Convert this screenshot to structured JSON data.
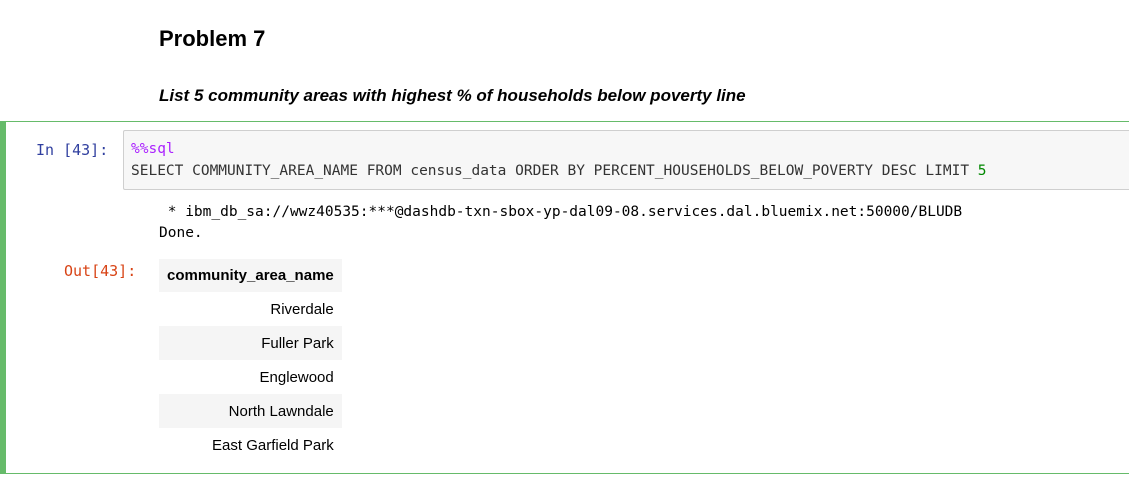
{
  "markdown": {
    "heading": "Problem 7",
    "subheading": "List 5 community areas with highest % of households below poverty line"
  },
  "cell": {
    "in_prompt": "In [43]:",
    "code_magic": "%%sql",
    "code_query": "SELECT COMMUNITY_AREA_NAME FROM census_data ORDER BY PERCENT_HOUSEHOLDS_BELOW_POVERTY DESC LIMIT ",
    "code_limit": "5",
    "stdout_line1": " * ibm_db_sa://wwz40535:***@dashdb-txn-sbox-yp-dal09-08.services.dal.bluemix.net:50000/BLUDB",
    "stdout_line2": "Done.",
    "out_prompt": "Out[43]:",
    "table": {
      "header": "community_area_name",
      "rows": [
        "Riverdale",
        "Fuller Park",
        "Englewood",
        "North Lawndale",
        "East Garfield Park"
      ]
    }
  },
  "colors": {
    "cell_border": "#66bb6a",
    "in_prompt": "#303f9f",
    "out_prompt": "#d84315",
    "magic": "#aa22ff",
    "number": "#008800"
  }
}
